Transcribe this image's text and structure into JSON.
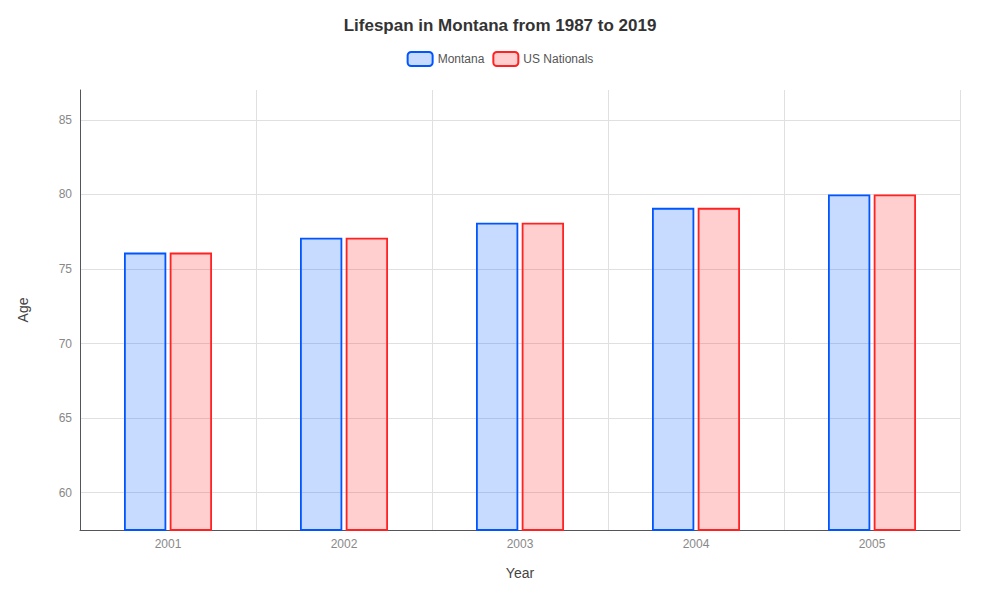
{
  "chart_data": {
    "type": "bar",
    "title": "Lifespan in Montana from 1987 to 2019",
    "xlabel": "Year",
    "ylabel": "Age",
    "categories": [
      "2001",
      "2002",
      "2003",
      "2004",
      "2005"
    ],
    "series": [
      {
        "name": "Montana",
        "color": "#0055ff",
        "values": [
          76.1,
          77.1,
          78.1,
          79.1,
          80.0
        ]
      },
      {
        "name": "US Nationals",
        "color": "#ff2222",
        "values": [
          76.1,
          77.1,
          78.1,
          79.1,
          80.0
        ]
      }
    ],
    "ylim": [
      57.5,
      87
    ],
    "yticks": [
      60,
      65,
      70,
      75,
      80,
      85
    ],
    "grid": true,
    "legend": "top"
  }
}
